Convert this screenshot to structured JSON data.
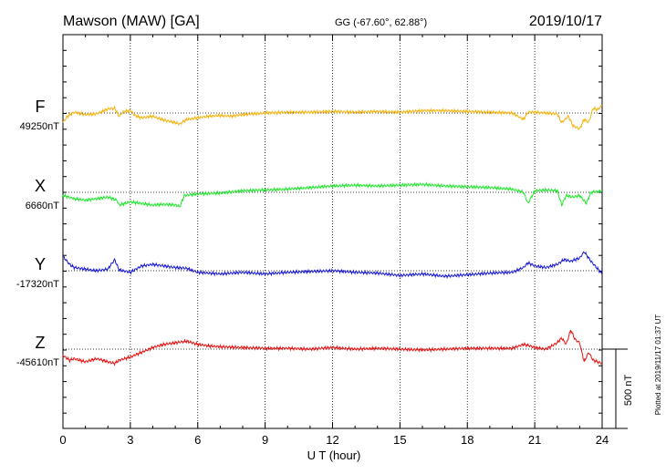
{
  "header": {
    "station": "Mawson (MAW)  [GA]",
    "coords": "GG (-67.60°,  62.88°)",
    "date": "2019/10/17"
  },
  "chart_data": {
    "type": "line",
    "xlabel": "U T (hour)",
    "xlim": [
      0,
      24
    ],
    "xticks": [
      "0",
      "3",
      "6",
      "9",
      "12",
      "15",
      "18",
      "21",
      "24"
    ],
    "scale_bar_label": "500 nT",
    "scale_bar_nT": 500,
    "footer_note": "Plotted at 2019/11/17 01:37 UT",
    "grid": "dotted vertical every 3 hours, dotted baseline per component",
    "series": [
      {
        "name": "F",
        "baseline_label": "49250nT",
        "baseline_nT": 49250,
        "color": "#f5b20a",
        "points": [
          [
            0,
            -60
          ],
          [
            0.2,
            -20
          ],
          [
            0.5,
            5
          ],
          [
            1.0,
            -10
          ],
          [
            1.5,
            -5
          ],
          [
            2.0,
            25
          ],
          [
            2.3,
            30
          ],
          [
            2.5,
            -20
          ],
          [
            2.7,
            10
          ],
          [
            3.0,
            15
          ],
          [
            3.2,
            -15
          ],
          [
            3.5,
            -30
          ],
          [
            4.0,
            -20
          ],
          [
            4.5,
            -45
          ],
          [
            5.0,
            -60
          ],
          [
            5.2,
            -70
          ],
          [
            5.5,
            -40
          ],
          [
            6.0,
            -30
          ],
          [
            6.5,
            -20
          ],
          [
            7.0,
            -15
          ],
          [
            7.5,
            -20
          ],
          [
            8.0,
            -10
          ],
          [
            9.0,
            0
          ],
          [
            10.0,
            5
          ],
          [
            11.0,
            5
          ],
          [
            12.0,
            10
          ],
          [
            13.0,
            5
          ],
          [
            14.0,
            10
          ],
          [
            15.0,
            5
          ],
          [
            16.0,
            15
          ],
          [
            17.0,
            15
          ],
          [
            18.0,
            10
          ],
          [
            19.0,
            5
          ],
          [
            20.0,
            0
          ],
          [
            20.5,
            -40
          ],
          [
            20.7,
            5
          ],
          [
            21.0,
            5
          ],
          [
            21.5,
            0
          ],
          [
            22.0,
            -5
          ],
          [
            22.2,
            -60
          ],
          [
            22.5,
            -20
          ],
          [
            22.7,
            -80
          ],
          [
            23.0,
            -100
          ],
          [
            23.2,
            -40
          ],
          [
            23.4,
            -60
          ],
          [
            23.6,
            30
          ],
          [
            23.8,
            20
          ],
          [
            24.0,
            50
          ]
        ]
      },
      {
        "name": "X",
        "baseline_label": "6660nT",
        "baseline_nT": 6660,
        "color": "#1ee82a",
        "points": [
          [
            0,
            -20
          ],
          [
            0.5,
            -40
          ],
          [
            1.0,
            -50
          ],
          [
            1.5,
            -40
          ],
          [
            2.0,
            -30
          ],
          [
            2.4,
            -50
          ],
          [
            2.5,
            -80
          ],
          [
            3.0,
            -60
          ],
          [
            3.5,
            -70
          ],
          [
            4.0,
            -80
          ],
          [
            4.5,
            -75
          ],
          [
            5.0,
            -80
          ],
          [
            5.2,
            -90
          ],
          [
            5.4,
            -20
          ],
          [
            6.0,
            -10
          ],
          [
            7.0,
            -5
          ],
          [
            8.0,
            10
          ],
          [
            9.0,
            15
          ],
          [
            10.0,
            20
          ],
          [
            11.0,
            30
          ],
          [
            12.0,
            40
          ],
          [
            13.0,
            45
          ],
          [
            14.0,
            40
          ],
          [
            15.0,
            45
          ],
          [
            16.0,
            50
          ],
          [
            17.0,
            40
          ],
          [
            18.0,
            35
          ],
          [
            19.0,
            30
          ],
          [
            20.0,
            20
          ],
          [
            20.5,
            0
          ],
          [
            20.7,
            -70
          ],
          [
            21.0,
            10
          ],
          [
            21.5,
            15
          ],
          [
            22.0,
            10
          ],
          [
            22.2,
            -80
          ],
          [
            22.4,
            -20
          ],
          [
            22.7,
            -30
          ],
          [
            23.0,
            -20
          ],
          [
            23.3,
            -70
          ],
          [
            23.5,
            0
          ],
          [
            24.0,
            10
          ]
        ]
      },
      {
        "name": "Y",
        "baseline_label": "-17320nT",
        "baseline_nT": -17320,
        "color": "#1a1ad8",
        "points": [
          [
            0,
            90
          ],
          [
            0.3,
            40
          ],
          [
            0.5,
            20
          ],
          [
            1.0,
            10
          ],
          [
            1.5,
            0
          ],
          [
            2.0,
            10
          ],
          [
            2.3,
            70
          ],
          [
            2.5,
            5
          ],
          [
            3.0,
            -10
          ],
          [
            3.5,
            30
          ],
          [
            4.0,
            40
          ],
          [
            4.5,
            30
          ],
          [
            5.0,
            20
          ],
          [
            5.5,
            15
          ],
          [
            6.0,
            -10
          ],
          [
            7.0,
            -20
          ],
          [
            8.0,
            -10
          ],
          [
            9.0,
            -20
          ],
          [
            10.0,
            -10
          ],
          [
            11.0,
            -5
          ],
          [
            12.0,
            0
          ],
          [
            13.0,
            -10
          ],
          [
            14.0,
            -15
          ],
          [
            15.0,
            -30
          ],
          [
            16.0,
            -20
          ],
          [
            17.0,
            -35
          ],
          [
            18.0,
            -25
          ],
          [
            19.0,
            -15
          ],
          [
            20.0,
            -10
          ],
          [
            20.5,
            20
          ],
          [
            20.7,
            50
          ],
          [
            21.0,
            30
          ],
          [
            21.5,
            20
          ],
          [
            22.0,
            40
          ],
          [
            22.3,
            70
          ],
          [
            22.6,
            60
          ],
          [
            23.0,
            80
          ],
          [
            23.2,
            120
          ],
          [
            23.5,
            60
          ],
          [
            24.0,
            -20
          ]
        ]
      },
      {
        "name": "Z",
        "baseline_label": "-45610nT",
        "baseline_nT": -45610,
        "color": "#e81010",
        "points": [
          [
            0,
            -40
          ],
          [
            0.3,
            -70
          ],
          [
            0.5,
            -60
          ],
          [
            1.0,
            -80
          ],
          [
            1.5,
            -60
          ],
          [
            2.0,
            -80
          ],
          [
            2.3,
            -90
          ],
          [
            2.5,
            -70
          ],
          [
            3.0,
            -50
          ],
          [
            3.5,
            -20
          ],
          [
            4.0,
            10
          ],
          [
            4.5,
            30
          ],
          [
            5.0,
            40
          ],
          [
            5.5,
            50
          ],
          [
            6.0,
            30
          ],
          [
            6.5,
            20
          ],
          [
            7.0,
            15
          ],
          [
            8.0,
            10
          ],
          [
            9.0,
            5
          ],
          [
            10.0,
            5
          ],
          [
            11.0,
            0
          ],
          [
            12.0,
            10
          ],
          [
            13.0,
            0
          ],
          [
            14.0,
            5
          ],
          [
            15.0,
            0
          ],
          [
            16.0,
            -5
          ],
          [
            17.0,
            0
          ],
          [
            18.0,
            5
          ],
          [
            19.0,
            5
          ],
          [
            20.0,
            5
          ],
          [
            20.5,
            30
          ],
          [
            20.8,
            20
          ],
          [
            21.0,
            10
          ],
          [
            21.5,
            0
          ],
          [
            22.0,
            40
          ],
          [
            22.2,
            70
          ],
          [
            22.4,
            30
          ],
          [
            22.6,
            120
          ],
          [
            22.8,
            60
          ],
          [
            23.0,
            40
          ],
          [
            23.2,
            -80
          ],
          [
            23.4,
            -20
          ],
          [
            23.6,
            -70
          ],
          [
            24.0,
            -90
          ]
        ]
      }
    ]
  }
}
